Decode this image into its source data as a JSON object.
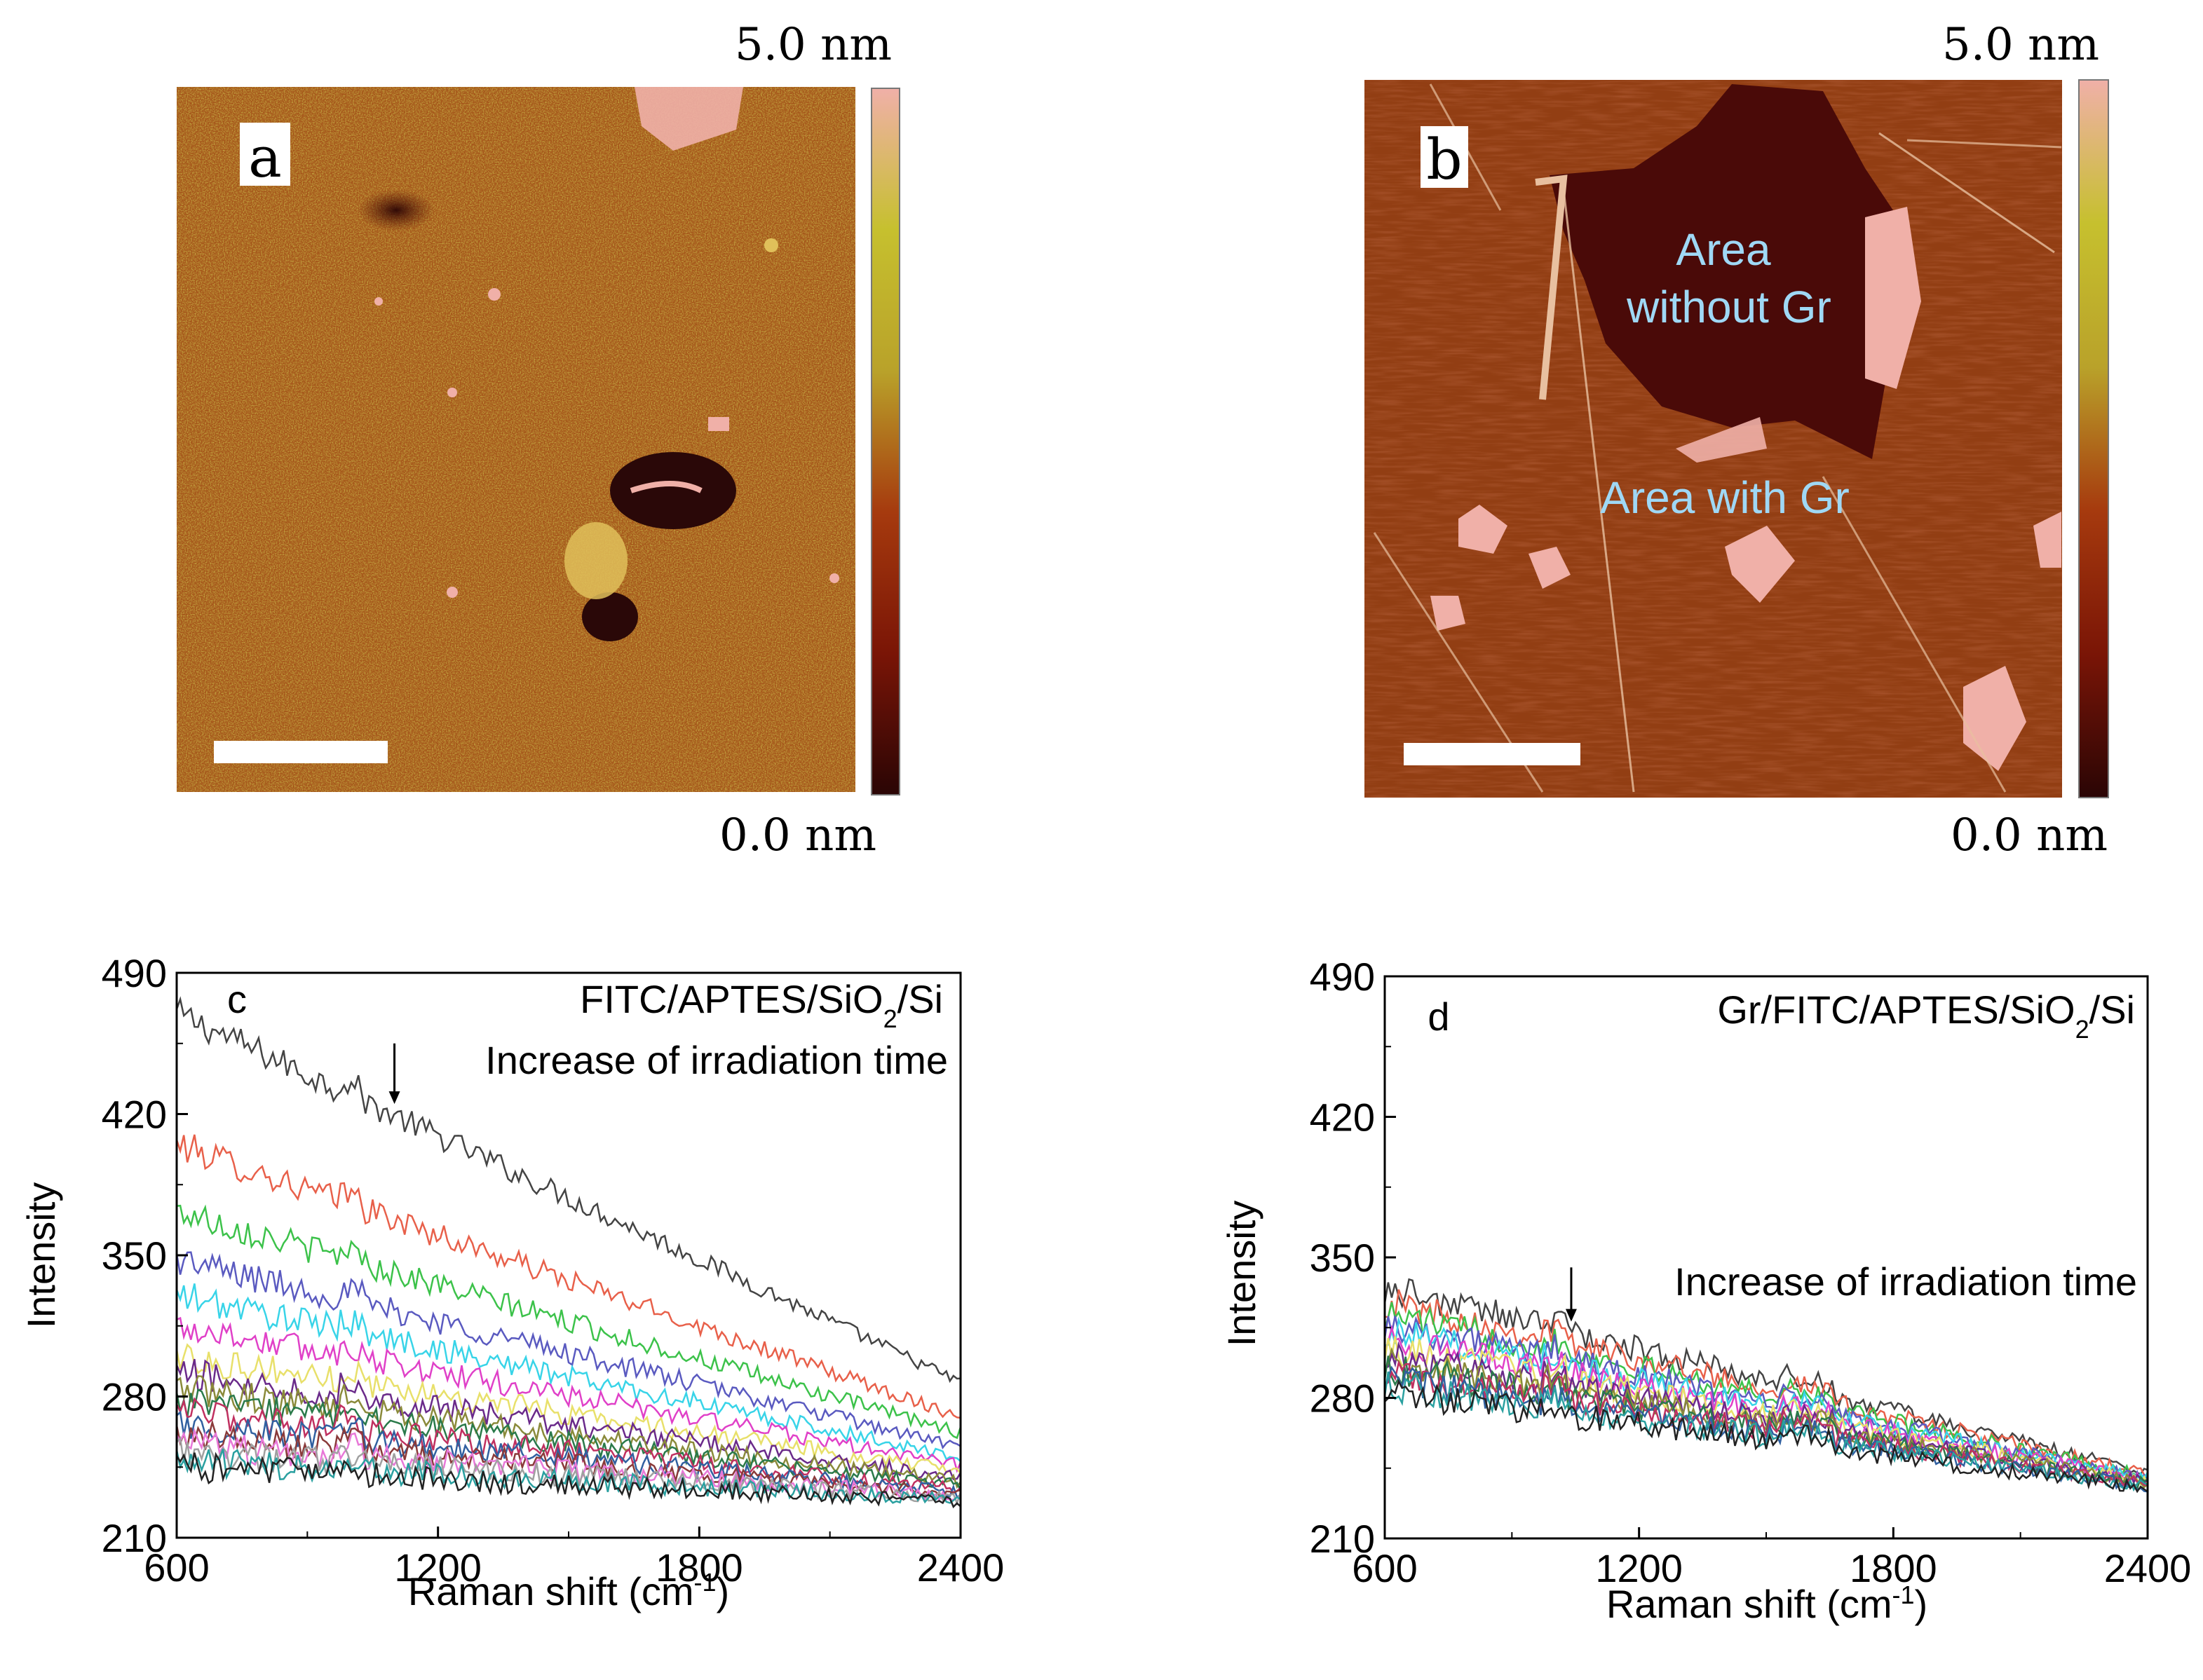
{
  "figure": {
    "panels": [
      {
        "id": "a",
        "label": "a",
        "type": "afm-image",
        "colorbar": {
          "max_label": "5.0 nm",
          "min_label": "0.0 nm",
          "colors": [
            "#2a0505",
            "#7a1506",
            "#a63a0e",
            "#b9a22a",
            "#c6c02e",
            "#f0b0a8"
          ]
        },
        "scale_bar": true
      },
      {
        "id": "b",
        "label": "b",
        "type": "afm-image",
        "colorbar": {
          "max_label": "5.0 nm",
          "min_label": "0.0 nm",
          "colors": [
            "#2a0505",
            "#7a1506",
            "#a63a0e",
            "#b9a22a",
            "#c6c02e",
            "#f0b0a8"
          ]
        },
        "annotations": {
          "without_line1": "Area",
          "without_line2": "without Gr",
          "with": "Area with Gr"
        },
        "annotation_color": "#9fd8f5",
        "scale_bar": true
      }
    ]
  },
  "chart_data": [
    {
      "panel": "c",
      "type": "line",
      "title": "FITC/APTES/SiO2/Si",
      "title_parts": {
        "main": "FITC/APTES/SiO",
        "sub": "2",
        "tail": "/Si"
      },
      "panel_label": "c",
      "annotation": "Increase of irradiation time",
      "annotation_arrow": {
        "x": 1100,
        "y_from": 455,
        "y_to": 425
      },
      "xlabel": {
        "main": "Raman shift (cm",
        "sup": "-1",
        "tail": ")"
      },
      "ylabel": "Intensity",
      "xlim": [
        600,
        2400
      ],
      "ylim": [
        210,
        490
      ],
      "xticks": [
        600,
        1200,
        1800,
        2400
      ],
      "yticks": [
        210,
        280,
        350,
        420,
        490
      ],
      "series": [
        {
          "name": "t1",
          "color": "#444444",
          "start": 470,
          "end": 287
        },
        {
          "name": "t2",
          "color": "#e8604a",
          "start": 405,
          "end": 270
        },
        {
          "name": "t3",
          "color": "#3cc24a",
          "start": 372,
          "end": 262
        },
        {
          "name": "t4",
          "color": "#5a5ac0",
          "start": 348,
          "end": 255
        },
        {
          "name": "t5",
          "color": "#38d4e8",
          "start": 330,
          "end": 250
        },
        {
          "name": "t6",
          "color": "#e040c8",
          "start": 315,
          "end": 246
        },
        {
          "name": "t7",
          "color": "#e8e06a",
          "start": 300,
          "end": 243
        },
        {
          "name": "t8",
          "color": "#6a2a8a",
          "start": 292,
          "end": 240
        },
        {
          "name": "t9",
          "color": "#8a8a3a",
          "start": 284,
          "end": 238
        },
        {
          "name": "t10",
          "color": "#2a7a4a",
          "start": 278,
          "end": 236
        },
        {
          "name": "t11",
          "color": "#c03060",
          "start": 272,
          "end": 234
        },
        {
          "name": "t12",
          "color": "#3060a0",
          "start": 266,
          "end": 233
        },
        {
          "name": "t13",
          "color": "#8a3a3a",
          "start": 261,
          "end": 232
        },
        {
          "name": "t14",
          "color": "#e878d8",
          "start": 256,
          "end": 231
        },
        {
          "name": "t15",
          "color": "#a0a0a0",
          "start": 252,
          "end": 230
        },
        {
          "name": "t16",
          "color": "#2aa0a0",
          "start": 248,
          "end": 229
        },
        {
          "name": "t17",
          "color": "#222222",
          "start": 245,
          "end": 228
        }
      ]
    },
    {
      "panel": "d",
      "type": "line",
      "title": "Gr/FITC/APTES/SiO2/Si",
      "title_parts": {
        "main": "Gr/FITC/APTES/SiO",
        "sub": "2",
        "tail": "/Si"
      },
      "panel_label": "d",
      "annotation": "Increase of irradiation time",
      "annotation_arrow": {
        "x": 1040,
        "y_from": 345,
        "y_to": 318
      },
      "xlabel": {
        "main": "Raman shift (cm",
        "sup": "-1",
        "tail": ")"
      },
      "ylabel": "Intensity",
      "xlim": [
        600,
        2400
      ],
      "ylim": [
        210,
        490
      ],
      "xticks": [
        600,
        1200,
        1800,
        2400
      ],
      "yticks": [
        210,
        280,
        350,
        420,
        490
      ],
      "series": [
        {
          "name": "t1",
          "color": "#444444",
          "start": 335,
          "end": 243
        },
        {
          "name": "t2",
          "color": "#e8604a",
          "start": 328,
          "end": 242
        },
        {
          "name": "t3",
          "color": "#3cc24a",
          "start": 322,
          "end": 241
        },
        {
          "name": "t4",
          "color": "#5a5ac0",
          "start": 317,
          "end": 240
        },
        {
          "name": "t5",
          "color": "#38d4e8",
          "start": 313,
          "end": 240
        },
        {
          "name": "t6",
          "color": "#e040c8",
          "start": 309,
          "end": 239
        },
        {
          "name": "t7",
          "color": "#e8e06a",
          "start": 305,
          "end": 239
        },
        {
          "name": "t8",
          "color": "#6a2a8a",
          "start": 301,
          "end": 238
        },
        {
          "name": "t9",
          "color": "#8a8a3a",
          "start": 298,
          "end": 238
        },
        {
          "name": "t10",
          "color": "#2a7a4a",
          "start": 295,
          "end": 237
        },
        {
          "name": "t11",
          "color": "#c03060",
          "start": 292,
          "end": 237
        },
        {
          "name": "t12",
          "color": "#3060a0",
          "start": 289,
          "end": 236
        },
        {
          "name": "t13",
          "color": "#2aa0a0",
          "start": 286,
          "end": 236
        },
        {
          "name": "t14",
          "color": "#222222",
          "start": 283,
          "end": 235
        }
      ]
    }
  ]
}
